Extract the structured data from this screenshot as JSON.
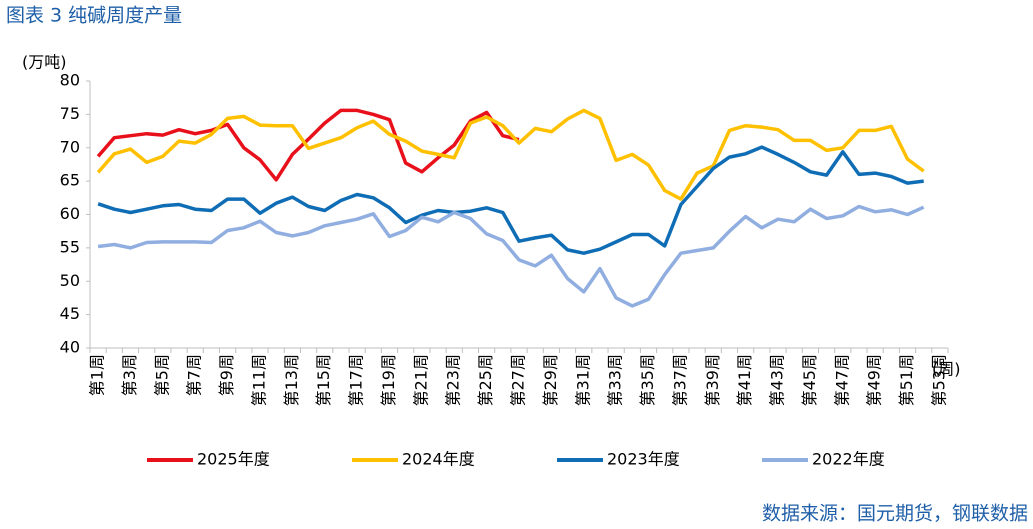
{
  "chart_data": {
    "type": "line",
    "title": "图表 3 纯碱周度产量",
    "y_label": "(万吨)",
    "x_label": "(周)",
    "source": "数据来源：国元期货，钢联数据",
    "categories": [
      "第1周",
      null,
      "第3周",
      null,
      "第5周",
      null,
      "第7周",
      null,
      "第9周",
      null,
      "第11周",
      null,
      "第13周",
      null,
      "第15周",
      null,
      "第17周",
      null,
      "第19周",
      null,
      "第21周",
      null,
      "第23周",
      null,
      "第25周",
      null,
      "第27周",
      null,
      "第29周",
      null,
      "第31周",
      null,
      "第33周",
      null,
      "第35周",
      null,
      "第37周",
      null,
      "第39周",
      null,
      "第41周",
      null,
      "第43周",
      null,
      "第45周",
      null,
      "第47周",
      null,
      "第49周",
      null,
      "第51周",
      null,
      "第53周"
    ],
    "ylim": [
      40,
      80
    ],
    "yticks": [
      40,
      45,
      50,
      55,
      60,
      65,
      70,
      75,
      80
    ],
    "grid": false,
    "legend": "bottom",
    "series": [
      {
        "name": "2025年度",
        "color": "#e8101a",
        "values": [
          68.7,
          71.5,
          71.8,
          72.1,
          71.9,
          72.7,
          72.1,
          72.6,
          73.5,
          70,
          68.2,
          65.2,
          69,
          71.3,
          73.7,
          75.6,
          75.6,
          75,
          74.2,
          67.7,
          66.4,
          68.5,
          70.4,
          74,
          75.3,
          71.8,
          71.2,
          null,
          null,
          null,
          null,
          null,
          null,
          null,
          null,
          null,
          null,
          null,
          null,
          null,
          null,
          null,
          null,
          null,
          null,
          null,
          null,
          null,
          null,
          null,
          null,
          null,
          null
        ]
      },
      {
        "name": "2024年度",
        "color": "#ffc000",
        "values": [
          66.3,
          69.1,
          69.8,
          67.8,
          68.7,
          71,
          70.7,
          72,
          74.4,
          74.7,
          73.4,
          73.3,
          73.3,
          69.9,
          70.7,
          71.5,
          73,
          74,
          72,
          71,
          69.5,
          69,
          68.5,
          73.7,
          74.6,
          73.3,
          70.7,
          72.9,
          72.4,
          74.3,
          75.6,
          74.4,
          68.1,
          69,
          67.4,
          63.6,
          62.3,
          66.2,
          67.3,
          72.6,
          73.3,
          73.1,
          72.7,
          71.1,
          71.1,
          69.6,
          70,
          72.6,
          72.6,
          73.2,
          68.3,
          66.5,
          null
        ]
      },
      {
        "name": "2023年度",
        "color": "#0f6db5",
        "values": [
          61.6,
          60.8,
          60.3,
          60.8,
          61.3,
          61.5,
          60.8,
          60.6,
          62.3,
          62.3,
          60.2,
          61.7,
          62.6,
          61.2,
          60.6,
          62.1,
          63,
          62.5,
          61,
          58.8,
          59.9,
          60.6,
          60.3,
          60.5,
          61,
          60.3,
          56,
          56.5,
          56.9,
          54.7,
          54.2,
          54.8,
          55.9,
          57,
          57,
          55.3,
          61.5,
          64.2,
          66.9,
          68.6,
          69.1,
          70.1,
          69,
          67.8,
          66.4,
          65.9,
          69.4,
          66,
          66.2,
          65.7,
          64.7,
          65,
          null
        ]
      },
      {
        "name": "2022年度",
        "color": "#91aee0",
        "values": [
          55.2,
          55.5,
          55,
          55.8,
          55.9,
          55.9,
          55.9,
          55.8,
          57.6,
          58,
          59,
          57.3,
          56.8,
          57.3,
          58.3,
          58.8,
          59.3,
          60.1,
          56.7,
          57.6,
          59.6,
          58.9,
          60.3,
          59.4,
          57.1,
          56.1,
          53.2,
          52.3,
          53.9,
          50.4,
          48.4,
          51.9,
          47.5,
          46.3,
          47.3,
          51,
          54.2,
          54.6,
          55,
          57.5,
          59.7,
          58,
          59.3,
          58.9,
          60.8,
          59.4,
          59.8,
          61.2,
          60.4,
          60.7,
          60,
          61.1,
          null
        ]
      }
    ]
  }
}
